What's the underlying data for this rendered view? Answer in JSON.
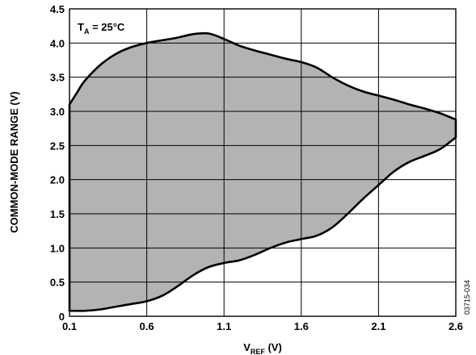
{
  "chart_data": {
    "type": "area",
    "annotation": {
      "main": "T",
      "sub": "A",
      "rest": " = 25°C"
    },
    "xlabel": {
      "main": "V",
      "sub": "REF",
      "rest": " (V)"
    },
    "ylabel": "COMMON-MODE RANGE (V)",
    "xlim": [
      0.1,
      2.6
    ],
    "ylim": [
      0,
      4.5
    ],
    "x_ticks": [
      "0.1",
      "0.6",
      "1.1",
      "1.6",
      "2.1",
      "2.6"
    ],
    "y_ticks": [
      "0",
      "0.5",
      "1.0",
      "1.5",
      "2.0",
      "2.5",
      "3.0",
      "3.5",
      "4.0",
      "4.5"
    ],
    "grid": true,
    "fill_color": "#b3b3b3",
    "figure_id": "03715-034",
    "series": [
      {
        "upper": [
          [
            0.1,
            3.1
          ],
          [
            0.15,
            3.28
          ],
          [
            0.2,
            3.45
          ],
          [
            0.3,
            3.68
          ],
          [
            0.4,
            3.84
          ],
          [
            0.5,
            3.94
          ],
          [
            0.6,
            4.0
          ],
          [
            0.7,
            4.04
          ],
          [
            0.8,
            4.08
          ],
          [
            0.9,
            4.13
          ],
          [
            1.0,
            4.14
          ],
          [
            1.1,
            4.06
          ],
          [
            1.2,
            3.96
          ],
          [
            1.3,
            3.89
          ],
          [
            1.4,
            3.83
          ],
          [
            1.5,
            3.77
          ],
          [
            1.6,
            3.72
          ],
          [
            1.7,
            3.64
          ],
          [
            1.8,
            3.5
          ],
          [
            1.9,
            3.38
          ],
          [
            2.0,
            3.29
          ],
          [
            2.1,
            3.23
          ],
          [
            2.2,
            3.17
          ],
          [
            2.3,
            3.1
          ],
          [
            2.4,
            3.04
          ],
          [
            2.5,
            2.97
          ],
          [
            2.6,
            2.88
          ]
        ],
        "lower": [
          [
            0.1,
            0.08
          ],
          [
            0.2,
            0.08
          ],
          [
            0.3,
            0.1
          ],
          [
            0.4,
            0.14
          ],
          [
            0.5,
            0.18
          ],
          [
            0.6,
            0.22
          ],
          [
            0.7,
            0.3
          ],
          [
            0.8,
            0.44
          ],
          [
            0.9,
            0.6
          ],
          [
            1.0,
            0.72
          ],
          [
            1.1,
            0.78
          ],
          [
            1.2,
            0.82
          ],
          [
            1.3,
            0.9
          ],
          [
            1.4,
            1.0
          ],
          [
            1.5,
            1.08
          ],
          [
            1.6,
            1.13
          ],
          [
            1.7,
            1.18
          ],
          [
            1.8,
            1.3
          ],
          [
            1.9,
            1.5
          ],
          [
            2.0,
            1.72
          ],
          [
            2.1,
            1.92
          ],
          [
            2.2,
            2.12
          ],
          [
            2.3,
            2.26
          ],
          [
            2.4,
            2.35
          ],
          [
            2.5,
            2.45
          ],
          [
            2.6,
            2.62
          ]
        ]
      }
    ]
  }
}
